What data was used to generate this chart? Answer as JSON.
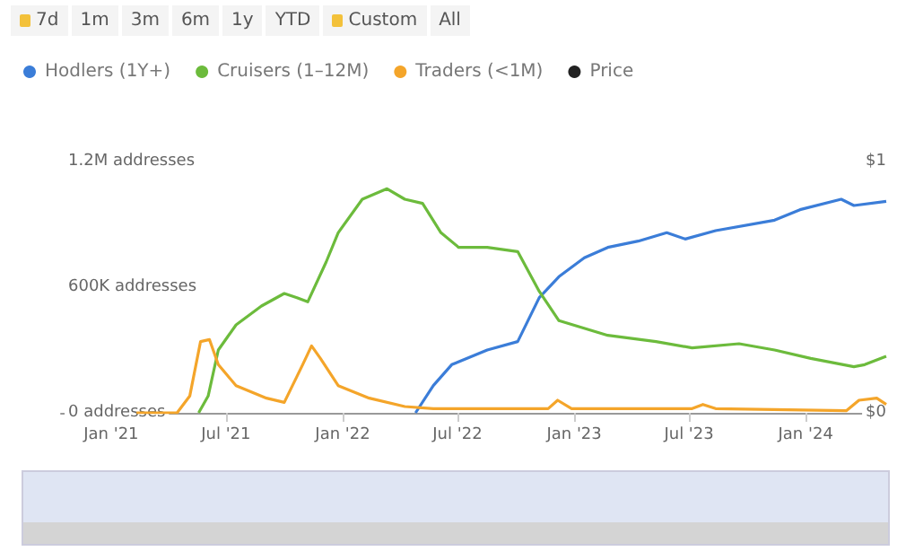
{
  "chart_data": {
    "type": "line",
    "annotations": [
      "7d",
      "1m",
      "3m",
      "6m",
      "1y",
      "YTD",
      "Custom",
      "All"
    ],
    "xlim": [
      "2020-10-14",
      "2024-05-07"
    ],
    "xticks": [
      {
        "value": "2021-01-01",
        "label": "Jan '21"
      },
      {
        "value": "2021-07-01",
        "label": "Jul '21"
      },
      {
        "value": "2022-01-01",
        "label": "Jan '22"
      },
      {
        "value": "2022-07-01",
        "label": "Jul '22"
      },
      {
        "value": "2023-01-01",
        "label": "Jan '23"
      },
      {
        "value": "2023-07-01",
        "label": "Jul '23"
      },
      {
        "value": "2024-01-01",
        "label": "Jan '24"
      }
    ],
    "ylim": [
      0,
      1200000
    ],
    "yticks": [
      {
        "value": 0,
        "label": "0 addresses"
      },
      {
        "value": 600000,
        "label": "600K addresses"
      },
      {
        "value": 1200000,
        "label": "1.2M addresses"
      }
    ],
    "y2lim": [
      0,
      1
    ],
    "y2ticks": [
      {
        "value": 0,
        "label": "$0"
      },
      {
        "value": 1,
        "label": "$1"
      }
    ],
    "legend": "top left",
    "grid": false,
    "marker": "none",
    "line_style": "solid",
    "series": [
      {
        "name": "Hodlers (1Y+)",
        "color": "#3b7dd8",
        "x": [
          "2022-04-26",
          "2022-05-24",
          "2022-06-22",
          "2022-08-17",
          "2022-10-04",
          "2022-11-07",
          "2022-12-08",
          "2023-01-17",
          "2023-02-23",
          "2023-04-12",
          "2023-05-27",
          "2023-06-25",
          "2023-08-12",
          "2023-11-13",
          "2023-12-23",
          "2024-02-26",
          "2024-03-17",
          "2024-05-07"
        ],
        "values": [
          0,
          130000,
          230000,
          300000,
          340000,
          550000,
          650000,
          740000,
          790000,
          820000,
          860000,
          830000,
          870000,
          920000,
          970000,
          1020000,
          990000,
          1010000
        ]
      },
      {
        "name": "Cruisers (1–12M)",
        "color": "#6cbb3c",
        "x": [
          "2021-05-19",
          "2021-06-03",
          "2021-06-19",
          "2021-07-17",
          "2021-08-26",
          "2021-10-01",
          "2021-10-21",
          "2021-11-07",
          "2021-12-06",
          "2021-12-25",
          "2022-02-01",
          "2022-03-12",
          "2022-04-09",
          "2022-05-07",
          "2022-06-05",
          "2022-07-03",
          "2022-08-17",
          "2022-10-04",
          "2022-11-07",
          "2022-12-08",
          "2023-02-23",
          "2023-05-10",
          "2023-07-06",
          "2023-09-18",
          "2023-11-13",
          "2024-01-09",
          "2024-03-17",
          "2024-04-03",
          "2024-05-07"
        ],
        "values": [
          0,
          80000,
          300000,
          420000,
          510000,
          570000,
          550000,
          530000,
          720000,
          860000,
          1020000,
          1070000,
          1020000,
          1000000,
          860000,
          790000,
          790000,
          770000,
          580000,
          440000,
          370000,
          340000,
          310000,
          330000,
          300000,
          260000,
          220000,
          230000,
          270000
        ]
      },
      {
        "name": "Traders (<1M)",
        "color": "#f4a52a",
        "x": [
          "2021-02-10",
          "2021-04-15",
          "2021-05-05",
          "2021-05-22",
          "2021-06-05",
          "2021-06-19",
          "2021-07-17",
          "2021-09-03",
          "2021-10-01",
          "2021-10-30",
          "2021-11-13",
          "2021-11-27",
          "2021-12-25",
          "2022-02-12",
          "2022-04-09",
          "2022-05-24",
          "2022-07-03",
          "2022-11-21",
          "2022-12-06",
          "2022-12-28",
          "2023-07-06",
          "2023-07-23",
          "2023-08-12",
          "2024-03-05",
          "2024-03-25",
          "2024-04-22",
          "2024-05-07"
        ],
        "values": [
          0,
          0,
          80000,
          340000,
          350000,
          230000,
          130000,
          70000,
          50000,
          230000,
          320000,
          260000,
          130000,
          70000,
          30000,
          20000,
          20000,
          20000,
          60000,
          20000,
          20000,
          40000,
          20000,
          10000,
          60000,
          70000,
          40000
        ]
      },
      {
        "name": "Price",
        "color": "#222222",
        "axis": "y2"
      }
    ]
  }
}
